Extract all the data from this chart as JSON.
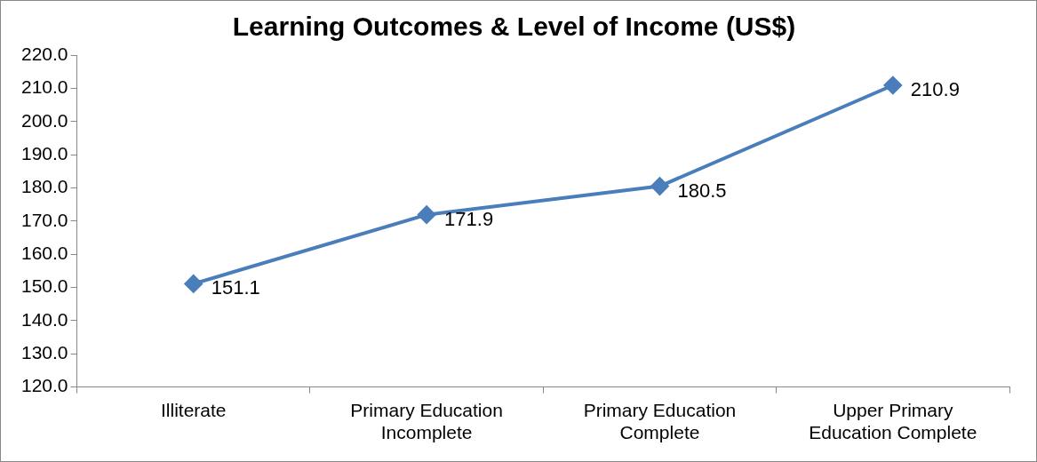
{
  "chart_data": {
    "type": "line",
    "title": "Learning Outcomes & Level of Income (US$)",
    "categories": [
      "Illiterate",
      "Primary Education Incomplete",
      "Primary Education Complete",
      "Upper Primary Education Complete"
    ],
    "series": [
      {
        "color": "#4a7ebb",
        "values": [
          151.1,
          171.9,
          180.5,
          210.9
        ]
      }
    ],
    "ylim": [
      120,
      220
    ],
    "yticks": [
      {
        "value": 120,
        "label": "120.0"
      },
      {
        "value": 130,
        "label": "130.0"
      },
      {
        "value": 140,
        "label": "140.0"
      },
      {
        "value": 150,
        "label": "150.0"
      },
      {
        "value": 160,
        "label": "160.0"
      },
      {
        "value": 170,
        "label": "170.0"
      },
      {
        "value": 180,
        "label": "180.0"
      },
      {
        "value": 190,
        "label": "190.0"
      },
      {
        "value": 200,
        "label": "200.0"
      },
      {
        "value": 210,
        "label": "210.0"
      },
      {
        "value": 220,
        "label": "220.0"
      }
    ],
    "grid": false,
    "legend": false,
    "marker": "diamond",
    "line_style": "solid",
    "data_labels": true
  }
}
